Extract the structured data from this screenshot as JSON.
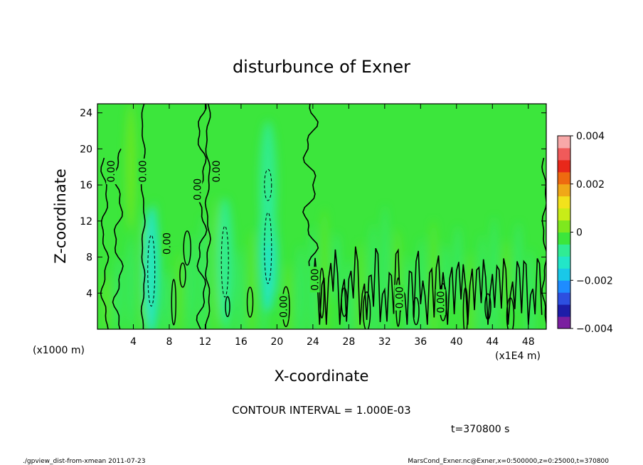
{
  "chart_data": {
    "type": "heatmap",
    "title": "disturbunce of Exner",
    "xlabel": "X-coordinate",
    "ylabel": "Z-coordinate",
    "x_unit_label": "(x1E4 m)",
    "y_unit_label": "(x1000 m)",
    "xlim": [
      0,
      50
    ],
    "ylim": [
      0,
      25
    ],
    "x_ticks": [
      4,
      8,
      12,
      16,
      20,
      24,
      28,
      32,
      36,
      40,
      44,
      48
    ],
    "y_ticks": [
      4,
      8,
      12,
      16,
      20,
      24
    ],
    "colorbar": {
      "min": -0.004,
      "max": 0.004,
      "tick_labels": [
        "0.004",
        "0.002",
        "0",
        "−0.002",
        "−0.004"
      ],
      "tick_values": [
        0.004,
        0.002,
        0,
        -0.002,
        -0.004
      ],
      "colors": [
        "#7a1fa0",
        "#1d1da8",
        "#2d4fe0",
        "#1e8cff",
        "#19c8e8",
        "#22e6c8",
        "#30ec94",
        "#3ce63c",
        "#7ee81e",
        "#c8ec18",
        "#f2e21c",
        "#f0a818",
        "#ee6a10",
        "#e8281a",
        "#f05a5a",
        "#f8a8a8"
      ]
    },
    "contour_interval": "CONTOUR INTERVAL = 1.000E-03",
    "contour_label": "0.00",
    "zero_contours_x": [
      0.5,
      2.5,
      5.1,
      11.3,
      12.4,
      23.8
    ],
    "negative_regions": [
      {
        "x": 6.0,
        "z": 6.5,
        "value": -0.0012
      },
      {
        "x": 14.2,
        "z": 7.5,
        "value": -0.001
      },
      {
        "x": 19.0,
        "z": 9.0,
        "value": -0.0012
      },
      {
        "x": 19.0,
        "z": 16.0,
        "value": -0.0006
      }
    ],
    "time_label": "t=370800 s"
  },
  "footer": {
    "left": "./gpview_dist-from-xmean  2011-07-23",
    "right": "MarsCond_Exner.nc@Exner,x=0:500000,z=0:25000,t=370800"
  }
}
